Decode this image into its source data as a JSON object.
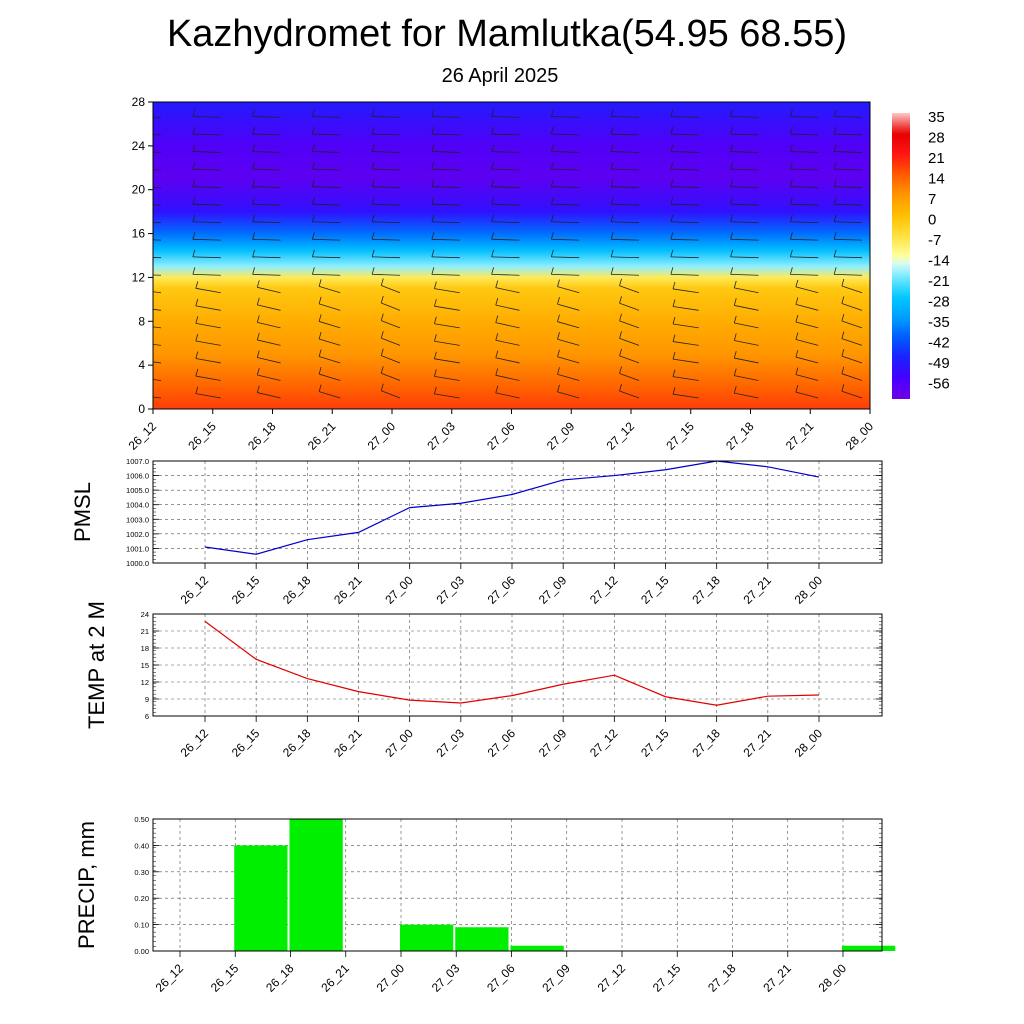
{
  "header": {
    "title": "Kazhydromet for Mamlutka(54.95 68.55)",
    "date": "26 April 2025"
  },
  "time_labels": [
    "26_12",
    "26_15",
    "26_18",
    "26_21",
    "27_00",
    "27_03",
    "27_06",
    "27_09",
    "27_12",
    "27_15",
    "27_18",
    "27_21",
    "28_00"
  ],
  "chart_data": [
    {
      "type": "heatmap",
      "title": "",
      "x": [
        "26_12",
        "26_15",
        "26_18",
        "26_21",
        "27_00",
        "27_03",
        "27_06",
        "27_09",
        "27_12",
        "27_15",
        "27_18",
        "27_21",
        "28_00"
      ],
      "y_ticks": [
        0,
        4,
        8,
        12,
        16,
        20,
        24,
        28
      ],
      "ylim": [
        0,
        28
      ],
      "colorbar_ticks": [
        35,
        28,
        21,
        14,
        7,
        0,
        -7,
        -14,
        -21,
        -28,
        -35,
        -42,
        -49,
        -56
      ],
      "value_profile_by_height": [
        {
          "h": 0,
          "v": 17
        },
        {
          "h": 2,
          "v": 13
        },
        {
          "h": 5,
          "v": 7
        },
        {
          "h": 8,
          "v": 3
        },
        {
          "h": 11,
          "v": -2
        },
        {
          "h": 12,
          "v": -9
        },
        {
          "h": 13,
          "v": -20
        },
        {
          "h": 14.5,
          "v": -30
        },
        {
          "h": 16,
          "v": -40
        },
        {
          "h": 18,
          "v": -52
        },
        {
          "h": 21,
          "v": -60
        },
        {
          "h": 24,
          "v": -58
        },
        {
          "h": 28,
          "v": -50
        }
      ],
      "overlay": "wind barbs"
    },
    {
      "type": "line",
      "ylabel": "PMSL",
      "x": [
        "26_12",
        "26_15",
        "26_18",
        "26_21",
        "27_00",
        "27_03",
        "27_06",
        "27_09",
        "27_12",
        "27_15",
        "27_18",
        "27_21",
        "28_00"
      ],
      "values": [
        1001.1,
        1000.6,
        1001.6,
        1002.1,
        1003.8,
        1004.1,
        1004.7,
        1005.7,
        1006.0,
        1006.4,
        1007.0,
        1006.6,
        1005.9
      ],
      "ylim": [
        1000,
        1007
      ],
      "y_ticks": [
        "1000.0",
        "1001.0",
        "1002.0",
        "1003.0",
        "1004.0",
        "1005.0",
        "1006.0",
        "1007.0"
      ],
      "color": "#0000cc",
      "grid": true
    },
    {
      "type": "line",
      "ylabel": "TEMP at 2 M",
      "x": [
        "26_12",
        "26_15",
        "26_18",
        "26_21",
        "27_00",
        "27_03",
        "27_06",
        "27_09",
        "27_12",
        "27_15",
        "27_18",
        "27_21",
        "28_00"
      ],
      "values": [
        22.7,
        16.0,
        12.6,
        10.3,
        8.8,
        8.3,
        9.6,
        11.6,
        13.2,
        9.4,
        7.9,
        9.5,
        9.7
      ],
      "ylim": [
        6,
        24
      ],
      "y_ticks": [
        "6",
        "9",
        "12",
        "15",
        "18",
        "21",
        "24"
      ],
      "color": "#e00000",
      "grid": true
    },
    {
      "type": "bar",
      "ylabel": "PRECIP, mm",
      "categories": [
        "26_12",
        "26_15",
        "26_18",
        "26_21",
        "27_00",
        "27_03",
        "27_06",
        "27_09",
        "27_12",
        "27_15",
        "27_18",
        "27_21",
        "28_00"
      ],
      "values": [
        0,
        0.4,
        0.5,
        0,
        0.1,
        0.09,
        0.02,
        0,
        0,
        0,
        0,
        0,
        0.02
      ],
      "ylim": [
        0,
        0.5
      ],
      "y_ticks": [
        "0.00",
        "0.10",
        "0.20",
        "0.30",
        "0.40",
        "0.50"
      ],
      "color": "#00ee00",
      "grid": true
    }
  ]
}
